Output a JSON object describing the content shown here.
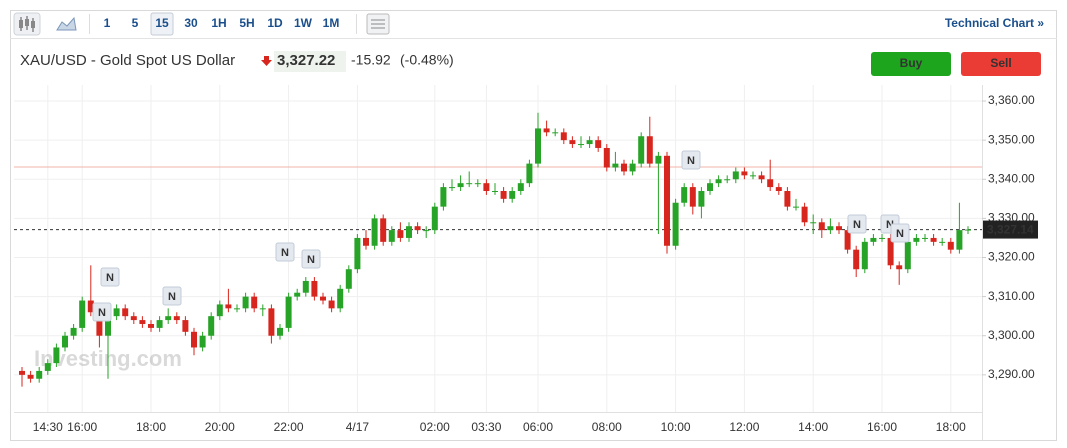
{
  "toolbar": {
    "intervals": [
      "1",
      "5",
      "15",
      "30",
      "1H",
      "5H",
      "1D",
      "1W",
      "1M"
    ],
    "selected": "15",
    "link": "Technical Chart »"
  },
  "header": {
    "title": "XAU/USD - Gold Spot US Dollar",
    "price": "3,327.22",
    "change": "-15.92",
    "change_percent": "(-0.48%)",
    "buy": "Buy",
    "sell": "Sell"
  },
  "chart_data": {
    "type": "candlestick",
    "categories": [
      null,
      null,
      null,
      "14:30",
      null,
      null,
      null,
      "16:00",
      null,
      null,
      null,
      null,
      null,
      null,
      null,
      "18:00",
      null,
      null,
      null,
      null,
      null,
      null,
      null,
      "20:00",
      null,
      null,
      null,
      null,
      null,
      null,
      null,
      "22:00",
      null,
      null,
      null,
      null,
      null,
      null,
      null,
      "4/17",
      null,
      null,
      null,
      null,
      null,
      null,
      null,
      null,
      "02:00",
      null,
      null,
      null,
      null,
      null,
      "03:30",
      null,
      null,
      null,
      null,
      null,
      "06:00",
      null,
      null,
      null,
      null,
      null,
      null,
      null,
      "08:00",
      null,
      null,
      null,
      null,
      null,
      null,
      null,
      "10:00",
      null,
      null,
      null,
      null,
      null,
      null,
      null,
      "12:00",
      null,
      null,
      null,
      null,
      null,
      null,
      null,
      "14:00",
      null,
      null,
      null,
      null,
      null,
      null,
      null,
      "16:00",
      null,
      null,
      null,
      null,
      null,
      null,
      null,
      "18:00",
      null,
      null
    ],
    "open": [
      3291,
      3290,
      3289,
      3291,
      3293,
      3297,
      3300,
      3302,
      3309,
      3306,
      3300,
      3305,
      3307,
      3305,
      3304,
      3303,
      3302,
      3304,
      3305,
      3304,
      3301,
      3297,
      3300,
      3305,
      3308,
      3307,
      3307,
      3310,
      3307,
      3307,
      3300,
      3302,
      3310,
      3311,
      3314,
      3310,
      3309,
      3307,
      3312,
      3317,
      3325,
      3323,
      3330,
      3324,
      3327,
      3325,
      3328,
      3327,
      3327,
      3333,
      3338,
      3338,
      3339,
      3339,
      3339,
      3337,
      3337,
      3335,
      3337,
      3339,
      3344,
      3353,
      3352,
      3352,
      3350,
      3349,
      3349,
      3350,
      3348,
      3343,
      3344,
      3342,
      3344,
      3351,
      3344,
      3346,
      3323,
      3334,
      3338,
      3333,
      3337,
      3339,
      3340,
      3340,
      3342,
      3341,
      3341,
      3340,
      3338,
      3337,
      3333,
      3333,
      3329,
      3329,
      3327,
      3328,
      3327,
      3322,
      3317,
      3324,
      3325,
      3325,
      3318,
      3317,
      3324,
      3325,
      3325,
      3324,
      3324,
      3322,
      3327
    ],
    "high": [
      3292,
      3291,
      3292,
      3294,
      3298,
      3301,
      3303,
      3310,
      3318,
      3307,
      3306,
      3308,
      3308,
      3306,
      3305,
      3304,
      3305,
      3307,
      3306,
      3305,
      3302,
      3301,
      3306,
      3309,
      3312,
      3308,
      3311,
      3311,
      3308,
      3308,
      3303,
      3311,
      3312,
      3315,
      3315,
      3311,
      3310,
      3313,
      3318,
      3326,
      3327,
      3331,
      3331,
      3328,
      3329,
      3329,
      3329,
      3328,
      3334,
      3339,
      3340,
      3341,
      3342,
      3340,
      3340,
      3339,
      3338,
      3338,
      3340,
      3345,
      3357,
      3355,
      3353,
      3353,
      3351,
      3351,
      3351,
      3351,
      3349,
      3347,
      3345,
      3345,
      3352,
      3356,
      3347,
      3347,
      3335,
      3339,
      3339,
      3338,
      3340,
      3341,
      3341,
      3343,
      3343,
      3342,
      3342,
      3345,
      3339,
      3338,
      3335,
      3334,
      3331,
      3330,
      3330,
      3329,
      3328,
      3323,
      3325,
      3326,
      3326,
      3326,
      3319,
      3325,
      3326,
      3326,
      3326,
      3325,
      3325,
      3334,
      3328
    ],
    "low": [
      3287,
      3288,
      3288,
      3290,
      3292,
      3296,
      3299,
      3301,
      3305,
      3297,
      3289,
      3304,
      3304,
      3303,
      3302,
      3301,
      3301,
      3303,
      3303,
      3300,
      3295,
      3296,
      3299,
      3304,
      3306,
      3306,
      3306,
      3306,
      3305,
      3298,
      3299,
      3301,
      3309,
      3310,
      3309,
      3308,
      3306,
      3306,
      3311,
      3316,
      3322,
      3322,
      3323,
      3323,
      3324,
      3324,
      3326,
      3325,
      3326,
      3332,
      3337,
      3337,
      3338,
      3338,
      3336,
      3336,
      3334,
      3334,
      3336,
      3338,
      3343,
      3351,
      3351,
      3349,
      3348,
      3348,
      3348,
      3347,
      3342,
      3342,
      3341,
      3341,
      3343,
      3343,
      3326,
      3321,
      3322,
      3333,
      3331,
      3330,
      3336,
      3338,
      3339,
      3339,
      3340,
      3340,
      3339,
      3337,
      3336,
      3332,
      3332,
      3328,
      3326,
      3325,
      3326,
      3326,
      3321,
      3315,
      3316,
      3323,
      3324,
      3317,
      3313,
      3316,
      3323,
      3324,
      3323,
      3323,
      3321,
      3321,
      3326
    ],
    "close": [
      3290,
      3289,
      3291,
      3293,
      3297,
      3300,
      3302,
      3309,
      3306,
      3300,
      3305,
      3307,
      3305,
      3304,
      3303,
      3302,
      3304,
      3305,
      3304,
      3301,
      3297,
      3300,
      3305,
      3308,
      3307,
      3307,
      3310,
      3307,
      3307,
      3300,
      3302,
      3310,
      3311,
      3314,
      3310,
      3309,
      3307,
      3312,
      3317,
      3325,
      3323,
      3330,
      3324,
      3327,
      3325,
      3328,
      3327,
      3327,
      3333,
      3338,
      3338,
      3339,
      3339,
      3339,
      3337,
      3337,
      3335,
      3337,
      3339,
      3344,
      3353,
      3352,
      3352,
      3350,
      3349,
      3349,
      3350,
      3348,
      3343,
      3344,
      3342,
      3344,
      3351,
      3344,
      3346,
      3323,
      3334,
      3338,
      3333,
      3337,
      3339,
      3340,
      3340,
      3342,
      3341,
      3341,
      3340,
      3338,
      3337,
      3333,
      3333,
      3329,
      3329,
      3327,
      3328,
      3327,
      3322,
      3317,
      3324,
      3325,
      3325,
      3318,
      3317,
      3324,
      3325,
      3325,
      3324,
      3324,
      3322,
      3327,
      3327.14
    ],
    "up_color": "#27a327",
    "down_color": "#d7261e",
    "ylim": [
      3280.5,
      3364.1
    ],
    "yticks": [
      {
        "value": 3290,
        "label": "3,290.00"
      },
      {
        "value": 3300,
        "label": "3,300.00"
      },
      {
        "value": 3310,
        "label": "3,310.00"
      },
      {
        "value": 3320,
        "label": "3,320.00"
      },
      {
        "value": 3330,
        "label": "3,330.00"
      },
      {
        "value": 3340,
        "label": "3,340.00"
      },
      {
        "value": 3350,
        "label": "3,350.00"
      },
      {
        "value": 3360,
        "label": "3,360.00"
      }
    ],
    "grid": true,
    "last_price": {
      "value": 3327.14,
      "label": "3,327.14"
    },
    "reference_line": 3343.14,
    "watermark": "Investing.com",
    "news_markers": [
      "N",
      "N",
      "N",
      "N",
      "N",
      "N",
      "N",
      "N",
      "N"
    ]
  }
}
